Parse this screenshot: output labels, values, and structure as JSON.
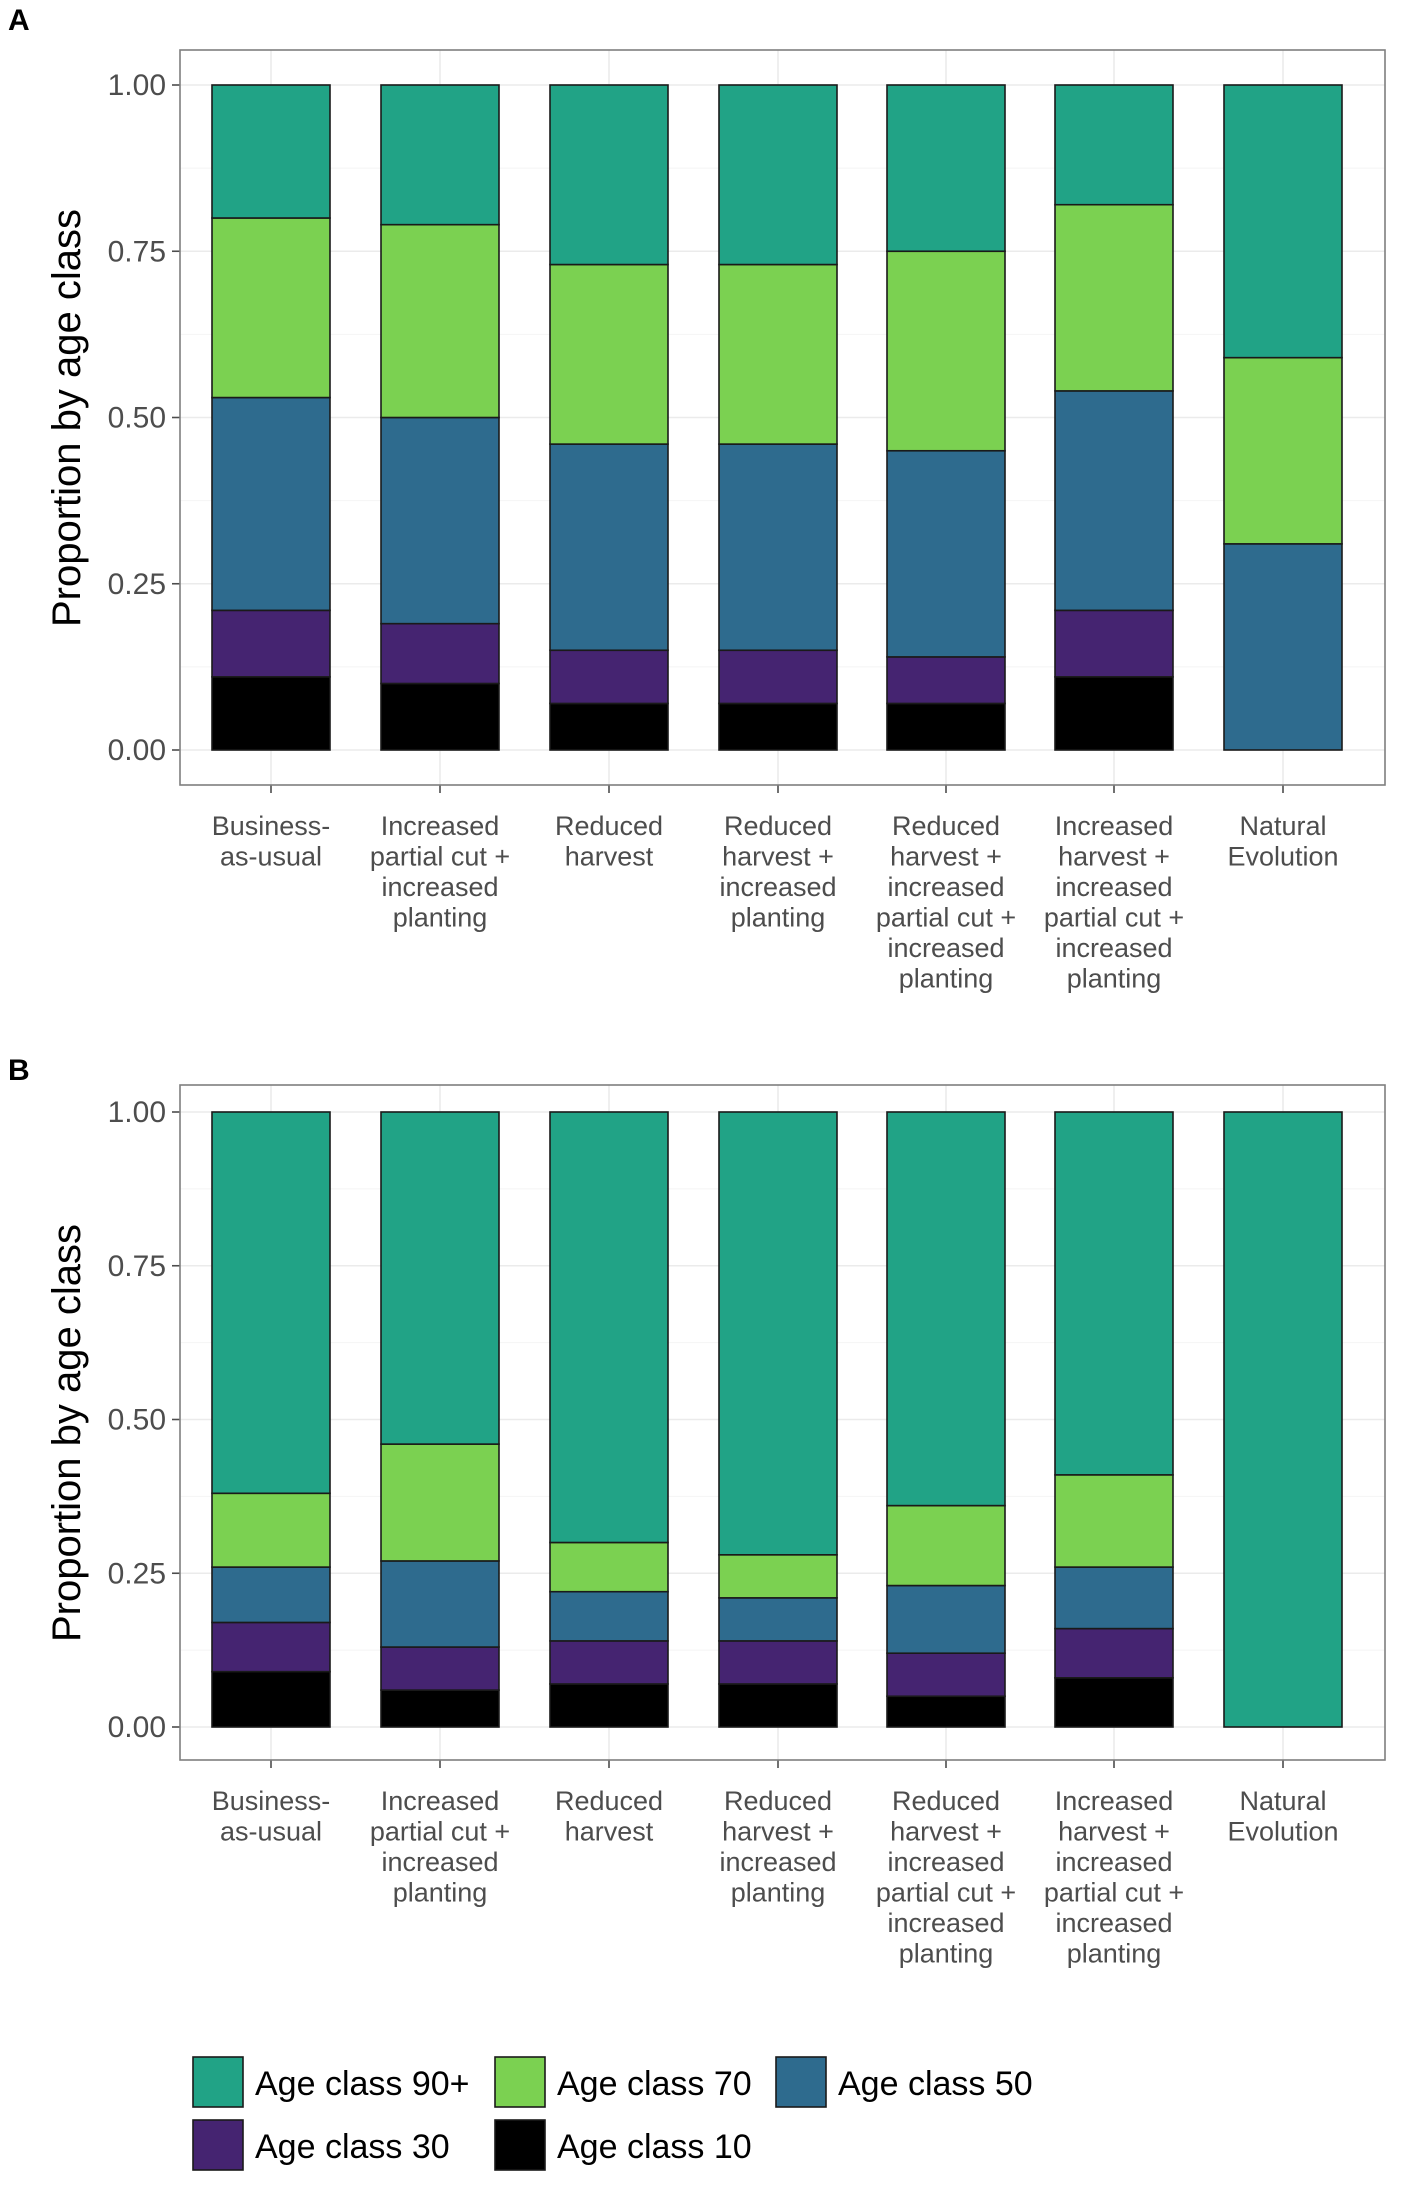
{
  "chart_data": [
    {
      "panel": "A",
      "type": "bar",
      "stacked": true,
      "ylabel": "Proportion by age class",
      "xlabel": "",
      "ylim": [
        0,
        1
      ],
      "yticks": [
        "0.00",
        "0.25",
        "0.50",
        "0.75",
        "1.00"
      ],
      "categories": [
        [
          "Business-",
          "as-usual"
        ],
        [
          "Increased",
          "partial cut +",
          "increased",
          "planting"
        ],
        [
          "Reduced",
          "harvest"
        ],
        [
          "Reduced",
          "harvest +",
          "increased",
          "planting"
        ],
        [
          "Reduced",
          "harvest +",
          "increased",
          "partial cut +",
          "increased",
          "planting"
        ],
        [
          "Increased",
          "harvest +",
          "increased",
          "partial cut +",
          "increased",
          "planting"
        ],
        [
          "Natural",
          "Evolution"
        ]
      ],
      "series": [
        {
          "name": "Age class 10",
          "values": [
            0.11,
            0.1,
            0.07,
            0.07,
            0.07,
            0.11,
            0.0
          ]
        },
        {
          "name": "Age class 30",
          "values": [
            0.1,
            0.09,
            0.08,
            0.08,
            0.07,
            0.1,
            0.0
          ]
        },
        {
          "name": "Age class 50",
          "values": [
            0.32,
            0.31,
            0.31,
            0.31,
            0.31,
            0.33,
            0.31
          ]
        },
        {
          "name": "Age class 70",
          "values": [
            0.27,
            0.29,
            0.27,
            0.27,
            0.3,
            0.28,
            0.28
          ]
        },
        {
          "name": "Age class 90+",
          "values": [
            0.2,
            0.21,
            0.27,
            0.27,
            0.25,
            0.18,
            0.41
          ]
        }
      ]
    },
    {
      "panel": "B",
      "type": "bar",
      "stacked": true,
      "ylabel": "Proportion by age class",
      "xlabel": "",
      "ylim": [
        0,
        1
      ],
      "yticks": [
        "0.00",
        "0.25",
        "0.50",
        "0.75",
        "1.00"
      ],
      "categories": [
        [
          "Business-",
          "as-usual"
        ],
        [
          "Increased",
          "partial cut +",
          "increased",
          "planting"
        ],
        [
          "Reduced",
          "harvest"
        ],
        [
          "Reduced",
          "harvest +",
          "increased",
          "planting"
        ],
        [
          "Reduced",
          "harvest +",
          "increased",
          "partial cut +",
          "increased",
          "planting"
        ],
        [
          "Increased",
          "harvest +",
          "increased",
          "partial cut +",
          "increased",
          "planting"
        ],
        [
          "Natural",
          "Evolution"
        ]
      ],
      "series": [
        {
          "name": "Age class 10",
          "values": [
            0.09,
            0.06,
            0.07,
            0.07,
            0.05,
            0.08,
            0.0
          ]
        },
        {
          "name": "Age class 30",
          "values": [
            0.08,
            0.07,
            0.07,
            0.07,
            0.07,
            0.08,
            0.0
          ]
        },
        {
          "name": "Age class 50",
          "values": [
            0.09,
            0.14,
            0.08,
            0.07,
            0.11,
            0.1,
            0.0
          ]
        },
        {
          "name": "Age class 70",
          "values": [
            0.12,
            0.19,
            0.08,
            0.07,
            0.13,
            0.15,
            0.0
          ]
        },
        {
          "name": "Age class 90+",
          "values": [
            0.62,
            0.54,
            0.7,
            0.72,
            0.64,
            0.59,
            1.0
          ]
        }
      ]
    }
  ],
  "legend": [
    {
      "name": "Age class 90+",
      "color": "#21a386"
    },
    {
      "name": "Age class 70",
      "color": "#7bd151"
    },
    {
      "name": "Age class 50",
      "color": "#2e6b8e"
    },
    {
      "name": "Age class 30",
      "color": "#452471"
    },
    {
      "name": "Age class 10",
      "color": "#000000"
    }
  ],
  "colors": {
    "Age class 90+": "#21a386",
    "Age class 70": "#7bd151",
    "Age class 50": "#2e6b8e",
    "Age class 30": "#452471",
    "Age class 10": "#000000"
  }
}
